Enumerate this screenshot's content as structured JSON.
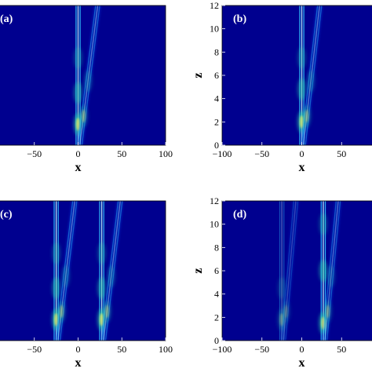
{
  "chart_data": [
    {
      "type": "heatmap",
      "panel_label": "(a)",
      "xlabel": "x",
      "ylabel": "",
      "xlim": [
        -100,
        100
      ],
      "ylim": [
        0,
        12
      ],
      "xticks": [
        -50,
        0,
        50,
        100
      ],
      "yticks": [],
      "colormap": "jet",
      "beams": [
        {
          "x0": 0,
          "slope": 0,
          "peak_z": [
            1.8,
            4.5,
            7.5
          ],
          "brightness": 1.0
        },
        {
          "x0": 2,
          "slope": 1.7,
          "peak_z": [
            2.5,
            5.5
          ],
          "brightness": 0.5
        }
      ]
    },
    {
      "type": "heatmap",
      "panel_label": "(b)",
      "xlabel": "x",
      "ylabel": "z",
      "xlim": [
        -100,
        100
      ],
      "ylim": [
        0,
        12
      ],
      "xticks": [
        -100,
        -50,
        0,
        50
      ],
      "yticks": [
        0,
        2,
        4,
        6,
        8,
        10,
        12
      ],
      "colormap": "jet",
      "beams": [
        {
          "x0": 0,
          "slope": 0,
          "peak_z": [
            2.0,
            4.8,
            7.5
          ],
          "brightness": 1.0
        },
        {
          "x0": 2,
          "slope": 1.7,
          "peak_z": [
            2.5,
            5.5
          ],
          "brightness": 0.5
        }
      ]
    },
    {
      "type": "heatmap",
      "panel_label": "(c)",
      "xlabel": "x",
      "ylabel": "",
      "xlim": [
        -100,
        100
      ],
      "ylim": [
        0,
        12
      ],
      "xticks": [
        -50,
        0,
        50,
        100
      ],
      "yticks": [],
      "colormap": "jet",
      "beams": [
        {
          "x0": -25,
          "slope": 0,
          "peak_z": [
            1.8,
            4.5,
            7.5
          ],
          "brightness": 1.0
        },
        {
          "x0": -23,
          "slope": 1.6,
          "peak_z": [
            2.5,
            5.5
          ],
          "brightness": 0.5
        },
        {
          "x0": 27,
          "slope": 0,
          "peak_z": [
            1.8,
            4.5,
            7.5
          ],
          "brightness": 1.0
        },
        {
          "x0": 29,
          "slope": 1.6,
          "peak_z": [
            2.5,
            5.5
          ],
          "brightness": 0.5
        }
      ]
    },
    {
      "type": "heatmap",
      "panel_label": "(d)",
      "xlabel": "x",
      "ylabel": "z",
      "xlim": [
        -100,
        100
      ],
      "ylim": [
        0,
        12
      ],
      "xticks": [
        -100,
        -50,
        0,
        50
      ],
      "yticks": [
        0,
        2,
        4,
        6,
        8,
        10,
        12
      ],
      "colormap": "jet",
      "beams": [
        {
          "x0": -25,
          "slope": 0,
          "peak_z": [
            1.8,
            4.5
          ],
          "brightness": 0.45
        },
        {
          "x0": -23,
          "slope": 1.3,
          "peak_z": [
            2.5
          ],
          "brightness": 0.3
        },
        {
          "x0": 27,
          "slope": 0,
          "peak_z": [
            1.5,
            6.0,
            10.0
          ],
          "brightness": 1.0
        },
        {
          "x0": 29,
          "slope": 1.4,
          "peak_z": [
            2.5,
            5.5
          ],
          "brightness": 0.45
        }
      ]
    }
  ]
}
